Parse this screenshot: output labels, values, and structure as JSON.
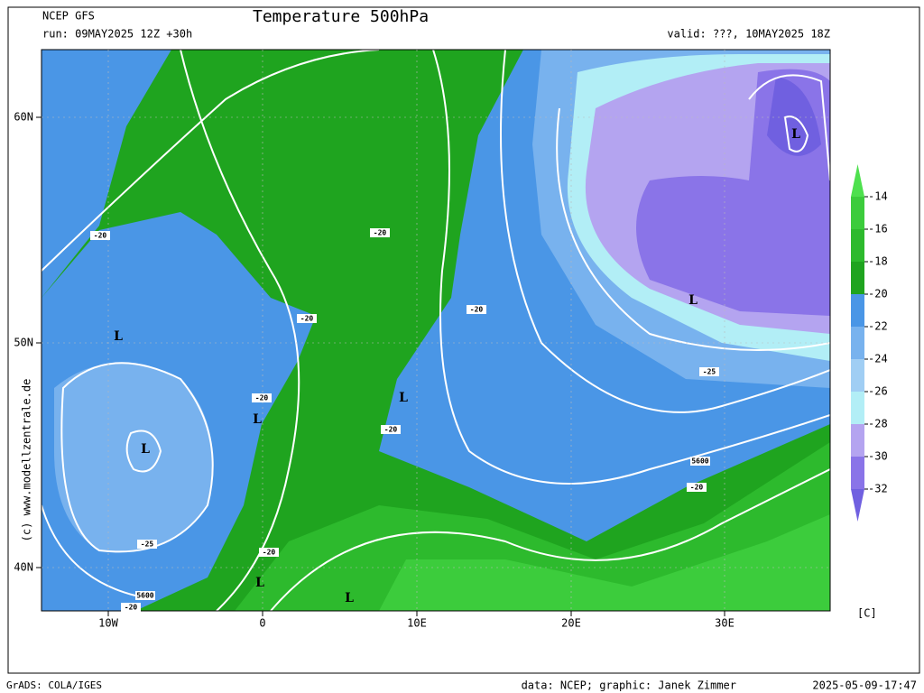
{
  "header": {
    "model": "NCEP GFS",
    "title": "Temperature 500hPa",
    "run": "run: 09MAY2025 12Z +30h",
    "valid": "valid: ???, 10MAY2025 18Z"
  },
  "map": {
    "lat_labels": [
      "60N",
      "50N",
      "40N"
    ],
    "lon_labels": [
      "10W",
      "0",
      "10E",
      "20E",
      "30E"
    ],
    "contour_labels": [
      "-20",
      "-20",
      "-20",
      "-20",
      "-20",
      "-20",
      "-20",
      "-20",
      "-20",
      "-25",
      "-25",
      "5600",
      "5600"
    ],
    "lows": [
      "L",
      "L",
      "L",
      "L",
      "L",
      "L",
      "L",
      "L"
    ]
  },
  "colorbar": {
    "labels": [
      -14,
      -16,
      -18,
      -20,
      -22,
      -24,
      -26,
      -28,
      -30,
      -32
    ],
    "unit": "[C]",
    "colors": [
      "#4ee04e",
      "#3ccc3c",
      "#2dba2d",
      "#1fa41f",
      "#4a96e6",
      "#78b2ee",
      "#a0cef4",
      "#b2eef6",
      "#b4a4f0",
      "#8a74e8",
      "#7060e0"
    ]
  },
  "credit": "(c) www.modellzentrale.de",
  "footer": {
    "left": "GrADS: COLA/IGES",
    "center": "data: NCEP; graphic: Janek Zimmer",
    "right": "2025-05-09-17:47"
  }
}
